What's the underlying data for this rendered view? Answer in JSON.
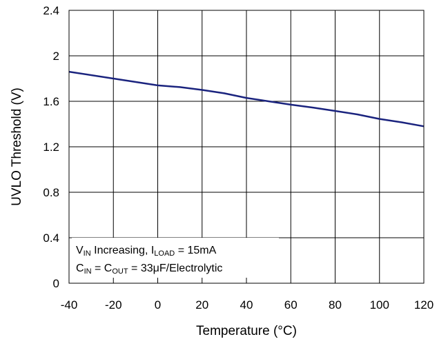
{
  "chart_data": {
    "type": "line",
    "xlabel": "Temperature (°C)",
    "ylabel": "UVLO Threshold (V)",
    "xlim": [
      -40,
      120
    ],
    "ylim": [
      0,
      2.4
    ],
    "x_ticks": [
      "-40",
      "-20",
      "0",
      "20",
      "40",
      "60",
      "80",
      "100",
      "120"
    ],
    "y_ticks": [
      "0",
      "0.4",
      "0.8",
      "1.2",
      "1.6",
      "2",
      "2.4"
    ],
    "grid": true,
    "series": [
      {
        "color": "#1a237e",
        "x": [
          -40,
          -20,
          0,
          10,
          20,
          30,
          40,
          50,
          60,
          70,
          80,
          90,
          100,
          110,
          120
        ],
        "y": [
          1.86,
          1.8,
          1.74,
          1.725,
          1.7,
          1.67,
          1.63,
          1.6,
          1.57,
          1.545,
          1.515,
          1.485,
          1.445,
          1.415,
          1.38
        ]
      }
    ],
    "annotation": {
      "line1": {
        "v": "V",
        "v_sub": "IN",
        "mid": " Increasing, I",
        "i_sub": "LOAD",
        "tail": " = 15mA"
      },
      "line2": {
        "c1": "C",
        "c1_sub": "IN",
        "mid": " = C",
        "c2_sub": "OUT",
        "tail": " = 33μF/Electrolytic"
      }
    }
  }
}
